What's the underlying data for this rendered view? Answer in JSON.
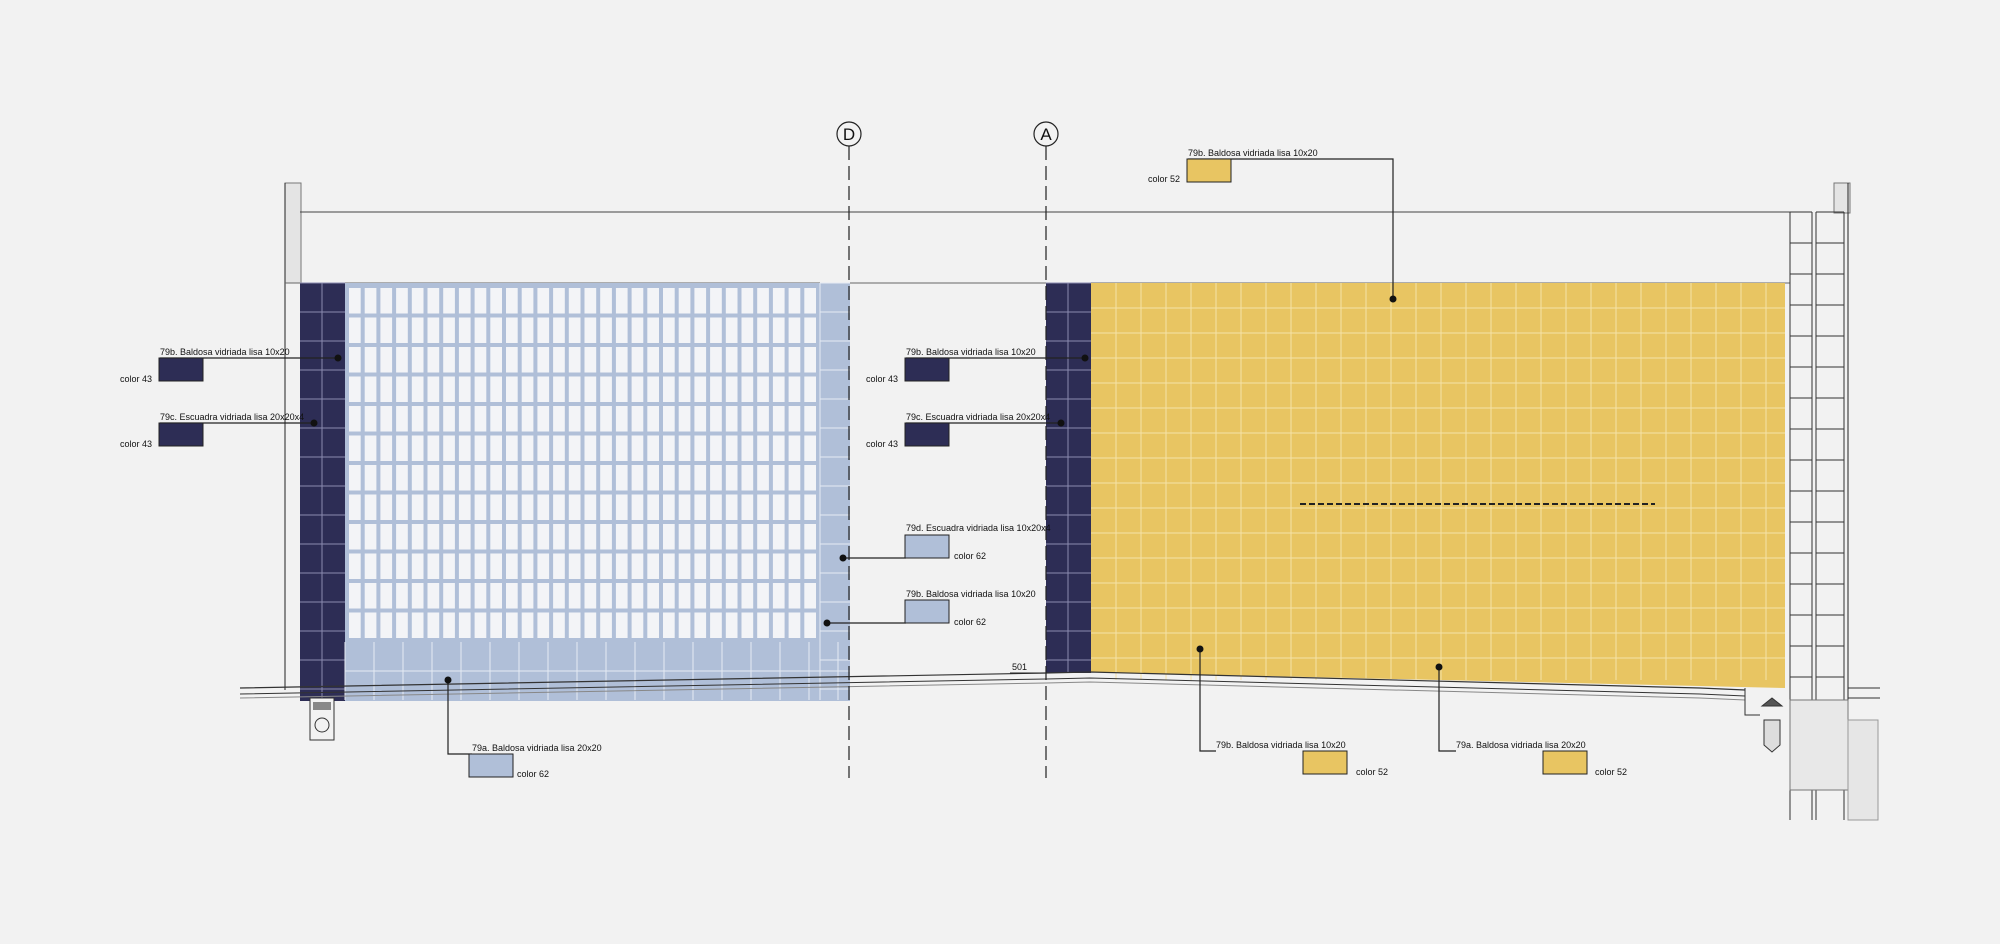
{
  "axes": [
    {
      "id": "D",
      "label": "D"
    },
    {
      "id": "A",
      "label": "A"
    }
  ],
  "colors": {
    "background": "#f2f2f2",
    "navy_color_43": "#2d2d55",
    "light_blue_color_62": "#b0bfd8",
    "yellow_color_52": "#e8c562",
    "line": "#222222"
  },
  "level_mark": "501",
  "callouts": [
    {
      "id": "top-yellow",
      "title": "79b. Baldosa vidriada lisa 10x20",
      "note": "color 52",
      "swatch": "yellow"
    },
    {
      "id": "left-b",
      "title": "79b. Baldosa vidriada lisa 10x20",
      "note": "color 43",
      "swatch": "navy"
    },
    {
      "id": "left-c",
      "title": "79c. Escuadra vidriada lisa 20x20x4",
      "note": "color 43",
      "swatch": "navy"
    },
    {
      "id": "mid-b",
      "title": "79b. Baldosa vidriada lisa 10x20",
      "note": "color 43",
      "swatch": "navy"
    },
    {
      "id": "mid-c",
      "title": "79c. Escuadra vidriada lisa 20x20x4",
      "note": "color 43",
      "swatch": "navy"
    },
    {
      "id": "mid-d",
      "title": "79d. Escuadra vidriada lisa 10x20x4",
      "note": "color 62",
      "swatch": "lightblue"
    },
    {
      "id": "mid-b2",
      "title": "79b. Baldosa vidriada lisa 10x20",
      "note": "color 62",
      "swatch": "lightblue"
    },
    {
      "id": "bottom-a-blue",
      "title": "79a. Baldosa vidriada lisa 20x20",
      "note": "color 62",
      "swatch": "lightblue"
    },
    {
      "id": "bottom-b-yellow",
      "title": "79b. Baldosa vidriada lisa 10x20",
      "note": "color 52",
      "swatch": "yellow"
    },
    {
      "id": "bottom-a-yellow",
      "title": "79a. Baldosa vidriada lisa 20x20",
      "note": "color 52",
      "swatch": "yellow"
    }
  ]
}
